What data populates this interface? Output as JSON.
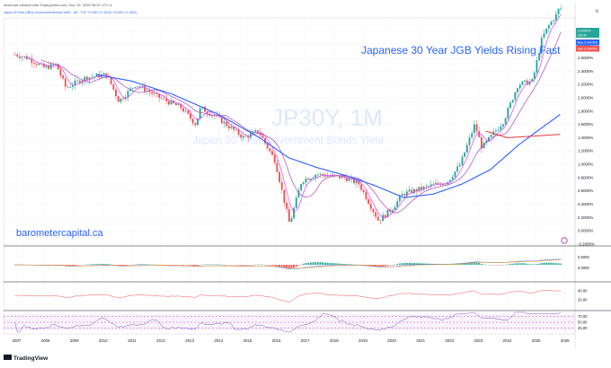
{
  "header": {
    "attribution": "dbarrows created with TradingView.com, Nov 19, 2025 08:51 UTC-5",
    "symbol_line": "Japan 30 Year (JBD) Government Bonds Yield · 1M · TVC  +0.030 (+1.01%)  +0.035 (+1.06%)"
  },
  "chart_data": {
    "type": "candlestick",
    "title": "Japanese 30 Year JGB Yields Rising Fast",
    "watermark_symbol": "JP30Y, 1M",
    "watermark_name": "Japan 30 Year Government Bonds Yield",
    "branding": "barometercapital.ca",
    "footer_logo": "TradingView",
    "colors": {
      "up": "#26a69a",
      "down": "#ef5350",
      "ma_fast": "#e040fb",
      "ma_mid": "#ab47bc",
      "ma_slow": "#2962ff",
      "ma_red": "#e53935",
      "title": "#2962ff"
    },
    "x_ticks": [
      "2007",
      "2008",
      "2009",
      "2010",
      "2011",
      "2012",
      "2013",
      "2014",
      "2015",
      "2016",
      "2017",
      "2018",
      "2019",
      "2020",
      "2021",
      "2022",
      "2023",
      "2024",
      "2025",
      "2026"
    ],
    "y_axis_ticks": [
      "3.0000%",
      "2.8000%",
      "2.6000%",
      "2.4000%",
      "2.2000%",
      "2.0000%",
      "1.8000%",
      "1.6000%",
      "1.4000%",
      "1.2000%",
      "1.0000%",
      "0.8000%",
      "0.6000%",
      "0.4000%",
      "0.2000%",
      "0.0000%",
      "-0.2000%"
    ],
    "ylim": [
      -0.2,
      3.2
    ],
    "price_badges": [
      {
        "label": "3.3400%",
        "sub": "16d 9h",
        "color": "#26a69a"
      },
      {
        "label": "Buy  3.3426%",
        "color": "#2962ff"
      },
      {
        "label": "Sell  3.3345%",
        "color": "#ef5350"
      }
    ],
    "anchors": [
      [
        "2007-01",
        2.65
      ],
      [
        "2007-06",
        2.6
      ],
      [
        "2008-01",
        2.45
      ],
      [
        "2008-06",
        2.5
      ],
      [
        "2008-10",
        2.15
      ],
      [
        "2009-06",
        2.3
      ],
      [
        "2010-03",
        2.35
      ],
      [
        "2010-08",
        1.95
      ],
      [
        "2011-03",
        2.2
      ],
      [
        "2012-01",
        2.0
      ],
      [
        "2012-10",
        1.85
      ],
      [
        "2013-04",
        1.6
      ],
      [
        "2013-06",
        1.85
      ],
      [
        "2014-01",
        1.7
      ],
      [
        "2014-12",
        1.4
      ],
      [
        "2015-06",
        1.5
      ],
      [
        "2016-01",
        1.05
      ],
      [
        "2016-07",
        0.1
      ],
      [
        "2016-12",
        0.75
      ],
      [
        "2017-06",
        0.85
      ],
      [
        "2018-06",
        0.8
      ],
      [
        "2018-12",
        0.7
      ],
      [
        "2019-08",
        0.15
      ],
      [
        "2020-02",
        0.35
      ],
      [
        "2020-06",
        0.55
      ],
      [
        "2021-06",
        0.68
      ],
      [
        "2022-01",
        0.75
      ],
      [
        "2022-06",
        1.0
      ],
      [
        "2022-12",
        1.6
      ],
      [
        "2023-03",
        1.25
      ],
      [
        "2023-12",
        1.65
      ],
      [
        "2024-06",
        2.2
      ],
      [
        "2024-12",
        2.25
      ],
      [
        "2025-04",
        2.9
      ],
      [
        "2025-07",
        3.1
      ],
      [
        "2025-10",
        3.25
      ],
      [
        "2025-11",
        3.34
      ]
    ],
    "sma_slow_anchors": [
      [
        "2009-10",
        2.35
      ],
      [
        "2011-01",
        2.25
      ],
      [
        "2012-06",
        2.05
      ],
      [
        "2014-01",
        1.75
      ],
      [
        "2015-06",
        1.4
      ],
      [
        "2016-06",
        1.1
      ],
      [
        "2017-06",
        0.95
      ],
      [
        "2018-06",
        0.83
      ],
      [
        "2019-06",
        0.68
      ],
      [
        "2020-06",
        0.5
      ],
      [
        "2021-06",
        0.55
      ],
      [
        "2022-06",
        0.7
      ],
      [
        "2023-06",
        0.92
      ],
      [
        "2024-06",
        1.3
      ],
      [
        "2025-11",
        1.75
      ]
    ],
    "ma_red_anchors": [
      [
        "2023-04",
        1.5
      ],
      [
        "2024-01",
        1.4
      ],
      [
        "2025-11",
        1.45
      ]
    ],
    "panels": [
      {
        "name": "MACD",
        "ticks": [
          "0.5000",
          "0.0000"
        ]
      },
      {
        "name": "RSI-1",
        "ticks": [
          "40.00",
          "20.00"
        ]
      },
      {
        "name": "RSI-2",
        "ticks": [
          "70.00",
          "50.00",
          "25.00"
        ]
      }
    ]
  }
}
